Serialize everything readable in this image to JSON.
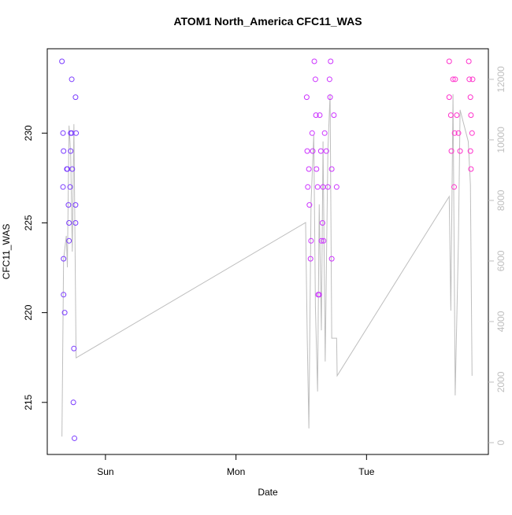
{
  "chart_data": {
    "type": "scatter",
    "title": "ATOM1 North_America CFC11_WAS",
    "x_label": "Date",
    "y_label": "CFC11_WAS",
    "xlim": [
      -10.7,
      70.4
    ],
    "ylim": [
      212.1,
      234.7
    ],
    "y2lim": [
      -390,
      13010
    ],
    "xticks": [
      {
        "value": 0,
        "label": "Sun"
      },
      {
        "value": 24,
        "label": "Mon"
      },
      {
        "value": 48,
        "label": "Tue"
      }
    ],
    "yticks": [
      215,
      220,
      225,
      230
    ],
    "y2ticks": [
      0,
      2000,
      4000,
      6000,
      8000,
      10000,
      12000
    ],
    "y2_color": "#bebebe",
    "series": [
      {
        "color": "#7b3cff",
        "x": [
          -8.0,
          -7.8,
          -7.7,
          -7.8,
          -7.7,
          -7.7,
          -7.5,
          -7.1,
          -6.8,
          -6.7,
          -6.7,
          -6.5,
          -6.4,
          -6.2,
          -6.2,
          -6.1,
          -5.9,
          -5.8,
          -5.7,
          -5.5,
          -5.5,
          -5.5,
          -5.4,
          -7.0,
          -6.4
        ],
        "values": [
          234,
          230,
          229,
          227,
          223,
          221,
          220,
          228,
          226,
          225,
          224,
          227,
          229,
          233,
          230,
          228,
          215,
          218,
          213,
          232,
          226,
          225,
          230,
          228,
          230
        ]
      },
      {
        "color": "#cc33ff",
        "x": [
          37.0,
          37.1,
          37.2,
          37.4,
          37.5,
          37.7,
          37.8,
          38.1,
          38.4,
          38.6,
          38.7,
          38.8,
          39.0,
          39.1,
          39.4,
          39.6,
          39.7,
          39.9,
          40.0,
          40.1,
          40.3,
          40.6,
          40.9,
          41.2,
          41.3,
          41.4,
          41.6,
          41.6,
          42.0,
          42.5,
          38.0,
          39.3
        ],
        "values": [
          232,
          229,
          227,
          228,
          226,
          223,
          224,
          229,
          234,
          233,
          231,
          228,
          227,
          221,
          231,
          229,
          224,
          225,
          227,
          224,
          230,
          229,
          227,
          233,
          232,
          234,
          228,
          223,
          231,
          227,
          230,
          221
        ]
      },
      {
        "color": "#ff33cc",
        "x": [
          63.2,
          63.2,
          63.5,
          63.6,
          63.9,
          64.1,
          64.2,
          64.3,
          64.6,
          64.9,
          65.2,
          66.8,
          66.9,
          67.1,
          67.1,
          67.2,
          67.2,
          67.4,
          67.5
        ],
        "values": [
          234,
          232,
          231,
          229,
          233,
          227,
          230,
          233,
          231,
          230,
          229,
          234,
          233,
          232,
          229,
          231,
          228,
          230,
          233
        ]
      },
      {
        "type": "line",
        "axis": "y2",
        "color": "#bebebe",
        "x": [
          -8.0,
          -7.7,
          -7.2,
          -7.0,
          -6.7,
          -6.4,
          -6.1,
          -5.8,
          -5.4,
          36.8,
          37.1,
          37.4,
          37.8,
          38.3,
          38.6,
          39.0,
          39.3,
          39.7,
          40.0,
          40.4,
          40.9,
          41.3,
          41.6,
          42.5,
          42.6,
          63.2,
          63.5,
          63.9,
          64.3,
          64.9,
          65.2,
          66.7,
          67.1,
          67.4
        ],
        "values": [
          200,
          6050,
          6830,
          5790,
          10470,
          9560,
          6310,
          10520,
          2800,
          7270,
          3450,
          470,
          7920,
          10160,
          4490,
          1690,
          7870,
          3710,
          9950,
          2680,
          9690,
          11510,
          3450,
          3450,
          2210,
          8130,
          4360,
          11510,
          1560,
          6700,
          10990,
          9950,
          8520,
          2210
        ]
      }
    ]
  }
}
